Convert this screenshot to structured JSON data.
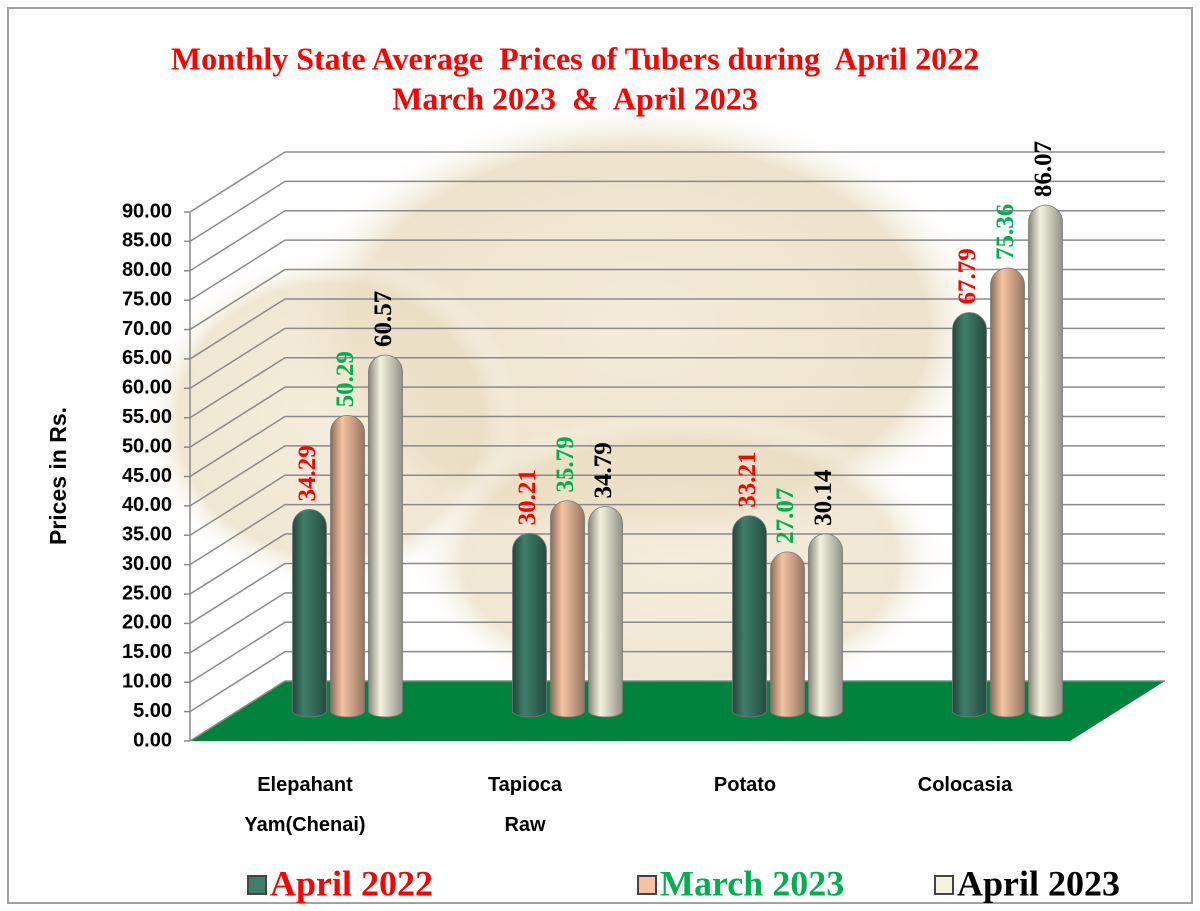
{
  "chart_data": {
    "type": "bar3d",
    "title": [
      "Monthly State Average  Prices of Tubers during  April 2022",
      "March 2023  &  April 2023"
    ],
    "y_label": "Prices in Rs.",
    "categories": [
      "Elepahant Yam(Chenai)",
      "Tapioca Raw",
      "Potato",
      "Colocasia"
    ],
    "series": [
      {
        "name": "April 2022",
        "color": "#ff0000",
        "bar_color": "#3f7f6a",
        "values": [
          34.29,
          30.21,
          33.21,
          67.79
        ]
      },
      {
        "name": "March 2023",
        "color": "#00b050",
        "bar_color": "#f6c4a2",
        "values": [
          50.29,
          35.79,
          27.07,
          75.36
        ]
      },
      {
        "name": "April 2023",
        "color": "#000000",
        "bar_color": "#f4f2df",
        "values": [
          60.57,
          34.79,
          30.14,
          86.07
        ]
      }
    ],
    "ylim": [
      0,
      90
    ],
    "yticks": [
      {
        "value": 0,
        "label": "0.00"
      },
      {
        "value": 5,
        "label": "5.00"
      },
      {
        "value": 10,
        "label": "10.00"
      },
      {
        "value": 15,
        "label": "15.00"
      },
      {
        "value": 20,
        "label": "20.00"
      },
      {
        "value": 25,
        "label": "25.00"
      },
      {
        "value": 30,
        "label": "30.00"
      },
      {
        "value": 35,
        "label": "35.00"
      },
      {
        "value": 40,
        "label": "40.00"
      },
      {
        "value": 45,
        "label": "45.00"
      },
      {
        "value": 50,
        "label": "50.00"
      },
      {
        "value": 55,
        "label": "55.00"
      },
      {
        "value": 60,
        "label": "60.00"
      },
      {
        "value": 65,
        "label": "65.00"
      },
      {
        "value": 70,
        "label": "70.00"
      },
      {
        "value": 75,
        "label": "75.00"
      },
      {
        "value": 80,
        "label": "80.00"
      },
      {
        "value": 85,
        "label": "85.00"
      },
      {
        "value": 90,
        "label": "90.00"
      }
    ],
    "grid": true,
    "floor_color": "#00843d"
  }
}
